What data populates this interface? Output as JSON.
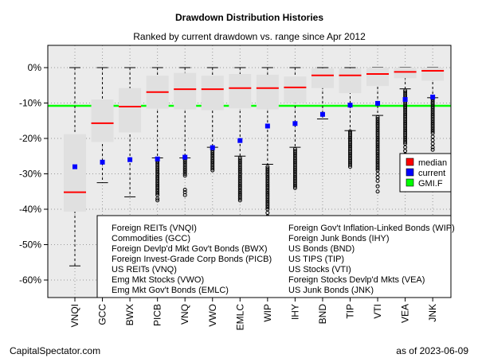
{
  "chart_data": {
    "type": "boxplot",
    "title": "Drawdown Distribution Histories",
    "subtitle": "Ranked by current drawdown vs. range since Apr 2012",
    "ylim": [
      -0.65,
      0.03
    ],
    "yticks": [
      0,
      -0.1,
      -0.2,
      -0.3,
      -0.4,
      -0.5,
      -0.6
    ],
    "ytick_labels": [
      "0%",
      "-10%",
      "-20%",
      "-30%",
      "-40%",
      "-50%",
      "-60%"
    ],
    "grid": true,
    "reference_line": {
      "name": "GMI.F",
      "value": -0.108
    },
    "categories": [
      "VNQI",
      "GCC",
      "BWX",
      "PICB",
      "VNQ",
      "VWO",
      "EMLC",
      "WIP",
      "IHY",
      "BND",
      "TIP",
      "VTI",
      "VEA",
      "JNK"
    ],
    "series": [
      {
        "name": "median",
        "values": [
          -0.352,
          -0.157,
          -0.11,
          -0.069,
          -0.061,
          -0.061,
          -0.058,
          -0.058,
          -0.056,
          -0.022,
          -0.022,
          -0.018,
          -0.012,
          -0.009
        ]
      },
      {
        "name": "current",
        "values": [
          -0.28,
          -0.267,
          -0.26,
          -0.258,
          -0.253,
          -0.226,
          -0.206,
          -0.165,
          -0.158,
          -0.132,
          -0.106,
          -0.101,
          -0.09,
          -0.083
        ]
      }
    ],
    "boxes": [
      {
        "ticker": "VNQI",
        "q1": -0.407,
        "q3": -0.188,
        "whisker_low": -0.56,
        "whisker_high": 0,
        "outliers": []
      },
      {
        "ticker": "GCC",
        "q1": -0.21,
        "q3": -0.09,
        "whisker_low": -0.325,
        "whisker_high": 0,
        "outliers": []
      },
      {
        "ticker": "BWX",
        "q1": -0.183,
        "q3": -0.058,
        "whisker_low": -0.365,
        "whisker_high": 0,
        "outliers": []
      },
      {
        "ticker": "PICB",
        "q1": -0.116,
        "q3": -0.023,
        "whisker_low": -0.255,
        "whisker_high": 0,
        "outliers": [
          -0.26,
          -0.265,
          -0.27,
          -0.275,
          -0.28,
          -0.285,
          -0.29,
          -0.295,
          -0.3,
          -0.305,
          -0.31,
          -0.315,
          -0.32,
          -0.325,
          -0.33,
          -0.335,
          -0.34,
          -0.345,
          -0.35,
          -0.355,
          -0.36,
          -0.37,
          -0.375
        ]
      },
      {
        "ticker": "VNQ",
        "q1": -0.118,
        "q3": -0.015,
        "whisker_low": -0.255,
        "whisker_high": 0,
        "outliers": [
          -0.26,
          -0.265,
          -0.27,
          -0.275,
          -0.28,
          -0.285,
          -0.29,
          -0.295,
          -0.3,
          -0.305,
          -0.345,
          -0.352,
          -0.36
        ]
      },
      {
        "ticker": "VWO",
        "q1": -0.12,
        "q3": -0.023,
        "whisker_low": -0.225,
        "whisker_high": 0,
        "outliers": [
          -0.23,
          -0.235,
          -0.24,
          -0.245,
          -0.25,
          -0.255,
          -0.26,
          -0.265,
          -0.27,
          -0.275,
          -0.28,
          -0.285,
          -0.29
        ]
      },
      {
        "ticker": "EMLC",
        "q1": -0.115,
        "q3": -0.018,
        "whisker_low": -0.25,
        "whisker_high": 0,
        "outliers": [
          -0.255,
          -0.26,
          -0.265,
          -0.27,
          -0.275,
          -0.28,
          -0.285,
          -0.29,
          -0.295,
          -0.3,
          -0.305,
          -0.31,
          -0.315,
          -0.32,
          -0.325,
          -0.33,
          -0.335,
          -0.34,
          -0.345,
          -0.35,
          -0.355,
          -0.36,
          -0.365,
          -0.37,
          -0.375
        ]
      },
      {
        "ticker": "WIP",
        "q1": -0.118,
        "q3": -0.02,
        "whisker_low": -0.273,
        "whisker_high": 0,
        "outliers": [
          -0.28,
          -0.285,
          -0.29,
          -0.295,
          -0.3,
          -0.305,
          -0.31,
          -0.315,
          -0.32,
          -0.325,
          -0.33,
          -0.335,
          -0.34,
          -0.345,
          -0.35,
          -0.355,
          -0.36,
          -0.365,
          -0.37,
          -0.375,
          -0.38,
          -0.385,
          -0.39,
          -0.395,
          -0.4,
          -0.41,
          -0.42
        ]
      },
      {
        "ticker": "IHY",
        "q1": -0.1,
        "q3": -0.025,
        "whisker_low": -0.225,
        "whisker_high": 0,
        "outliers": [
          -0.23,
          -0.235,
          -0.24,
          -0.245,
          -0.25,
          -0.255,
          -0.26,
          -0.265,
          -0.27,
          -0.275,
          -0.28,
          -0.285,
          -0.29,
          -0.295,
          -0.3,
          -0.305,
          -0.31,
          -0.315,
          -0.32,
          -0.325,
          -0.33,
          -0.335,
          -0.34
        ]
      },
      {
        "ticker": "BND",
        "q1": -0.058,
        "q3": -0.002,
        "whisker_low": -0.145,
        "whisker_high": 0,
        "outliers": []
      },
      {
        "ticker": "TIP",
        "q1": -0.072,
        "q3": -0.002,
        "whisker_low": -0.178,
        "whisker_high": 0,
        "outliers": [
          -0.18,
          -0.185,
          -0.19,
          -0.195,
          -0.2,
          -0.205,
          -0.21,
          -0.215,
          -0.22,
          -0.225,
          -0.23,
          -0.235,
          -0.24,
          -0.245,
          -0.25,
          -0.255,
          -0.26,
          -0.265,
          -0.27,
          -0.275,
          -0.28
        ]
      },
      {
        "ticker": "VTI",
        "q1": -0.052,
        "q3": 0,
        "whisker_low": -0.135,
        "whisker_high": 0,
        "outliers": [
          -0.14,
          -0.145,
          -0.15,
          -0.155,
          -0.16,
          -0.165,
          -0.17,
          -0.175,
          -0.18,
          -0.185,
          -0.19,
          -0.195,
          -0.2,
          -0.205,
          -0.21,
          -0.215,
          -0.22,
          -0.225,
          -0.23,
          -0.235,
          -0.24,
          -0.245,
          -0.25,
          -0.255,
          -0.26,
          -0.265,
          -0.27,
          -0.275,
          -0.28,
          -0.285,
          -0.29,
          -0.3,
          -0.31,
          -0.32,
          -0.335,
          -0.35
        ]
      },
      {
        "ticker": "VEA",
        "q1": -0.03,
        "q3": 0,
        "whisker_low": -0.06,
        "whisker_high": 0,
        "outliers": [
          -0.065,
          -0.07,
          -0.075,
          -0.08,
          -0.085,
          -0.09,
          -0.095,
          -0.1,
          -0.105,
          -0.11,
          -0.115,
          -0.12,
          -0.125,
          -0.13,
          -0.135,
          -0.14,
          -0.145,
          -0.15,
          -0.155,
          -0.16,
          -0.165,
          -0.17,
          -0.175,
          -0.18,
          -0.185,
          -0.19,
          -0.195,
          -0.2,
          -0.205,
          -0.21,
          -0.215,
          -0.225,
          -0.235,
          -0.245,
          -0.26,
          -0.275,
          -0.29,
          -0.305,
          -0.315
        ]
      },
      {
        "ticker": "JNK",
        "q1": -0.037,
        "q3": 0,
        "whisker_low": -0.085,
        "whisker_high": 0,
        "outliers": [
          -0.09,
          -0.095,
          -0.1,
          -0.105,
          -0.11,
          -0.115,
          -0.12,
          -0.125,
          -0.13,
          -0.135,
          -0.14,
          -0.145,
          -0.15,
          -0.155,
          -0.16,
          -0.165,
          -0.17,
          -0.175,
          -0.18,
          -0.185,
          -0.195,
          -0.205,
          -0.215,
          -0.225,
          -0.232
        ]
      }
    ],
    "colors": {
      "median": "#ff0000",
      "current": "#0000ff",
      "gmi": "#00ff00",
      "box": "#e0e0e0",
      "panel": "#ebebeb"
    },
    "legend": {
      "position": "right",
      "entries": [
        {
          "label": "median",
          "color": "#ff0000"
        },
        {
          "label": "current",
          "color": "#0000ff"
        },
        {
          "label": "GMI.F",
          "color": "#00ff00"
        }
      ]
    },
    "ticker_key": [
      "Foreign REITs (VNQI)",
      "Commodities (GCC)",
      "Foreign Devlp'd Mkt Gov't Bonds (BWX)",
      "Foreign Invest-Grade Corp Bonds (PICB)",
      "US REITs (VNQ)",
      "Emg Mkt Stocks (VWO)",
      "Emg Mkt Gov't Bonds (EMLC)",
      "Foreign Gov't Inflation-Linked Bonds (WIP)",
      "Foreign Junk Bonds (IHY)",
      "US Bonds (BND)",
      "US TIPS (TIP)",
      "US Stocks (VTI)",
      "Foreign Stocks Devlp'd Mkts (VEA)",
      "US Junk Bonds (JNK)"
    ]
  },
  "footer": {
    "source": "CapitalSpectator.com",
    "date": "as of  2023-06-09"
  }
}
